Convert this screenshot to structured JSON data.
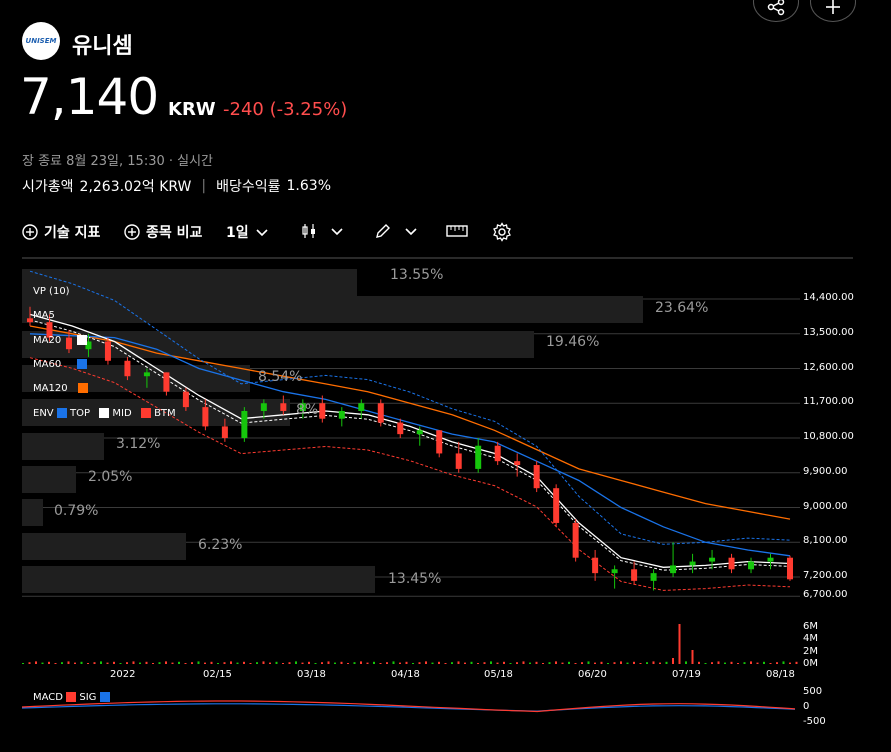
{
  "stock": {
    "logo_text": "UNISEM",
    "name": "유니셈",
    "price": "7,140",
    "currency": "KRW",
    "change": "-240",
    "change_pct": "(-3.25%)",
    "status": "장 종료 8월 23일, 15:30 · 실시간",
    "market_cap_label": "시가총액",
    "market_cap": "2,263.02억 KRW",
    "dividend_label": "배당수익률",
    "dividend": "1.63%"
  },
  "toolbar": {
    "indicators": "기술 지표",
    "compare": "종목 비교",
    "interval": "1일"
  },
  "legend": {
    "vp": "VP (10)",
    "ma5": "MA5",
    "ma20": "MA20",
    "ma60": "MA60",
    "ma120": "MA120",
    "env": "ENV",
    "top": "TOP",
    "mid": "MID",
    "btm": "BTM",
    "macd": "MACD",
    "sig": "SIG"
  },
  "colors": {
    "up": "#16c60c",
    "down": "#ff3b30",
    "ma20": "#ffffff",
    "ma60": "#1a73e8",
    "ma120": "#ff6d00",
    "env": "#1a73e8",
    "change_negative": "#ff4d4d"
  },
  "volume_profile": [
    "13.55%",
    "23.64%",
    "19.46%",
    "8.54%",
    "8%",
    "3.12%",
    "2.05%",
    "0.79%",
    "6.23%",
    "13.45%"
  ],
  "price_axis": [
    "14,400.00",
    "13,500.00",
    "12,600.00",
    "11,700.00",
    "10,800.00",
    "9,900.00",
    "9,000.00",
    "8,100.00",
    "7,200.00",
    "6,700.00"
  ],
  "volume_axis": [
    "6M",
    "4M",
    "2M",
    "0M"
  ],
  "macd_axis": [
    "500",
    "0",
    "-500"
  ],
  "x_axis": [
    "2022",
    "02/15",
    "03/18",
    "04/18",
    "05/18",
    "06/20",
    "07/19",
    "08/18"
  ],
  "chart_data": {
    "type": "candlestick",
    "title": "",
    "xlabel": "",
    "ylabel": "",
    "ylim": [
      6700,
      14800
    ],
    "series": [
      {
        "name": "MA20",
        "values": [
          14000,
          13700,
          13300,
          12600,
          11900,
          11300,
          11400,
          11500,
          11400,
          11100,
          10700,
          10400,
          9800,
          8600,
          7700,
          7450,
          7500,
          7600,
          7550
        ]
      },
      {
        "name": "MA60",
        "values": [
          13500,
          13450,
          13400,
          13100,
          12600,
          12300,
          12000,
          11800,
          11500,
          11200,
          10900,
          10700,
          10200,
          9700,
          9000,
          8500,
          8100,
          7900,
          7750
        ]
      },
      {
        "name": "MA120",
        "values": [
          13700,
          13500,
          13300,
          13000,
          12800,
          12600,
          12400,
          12200,
          12000,
          11700,
          11400,
          11000,
          10500,
          10000,
          9700,
          9400,
          9100,
          8900,
          8700
        ]
      }
    ],
    "candles": [
      [
        13900,
        14200,
        13700,
        13800
      ],
      [
        13800,
        14000,
        13300,
        13400
      ],
      [
        13400,
        13600,
        13000,
        13100
      ],
      [
        13100,
        13500,
        12900,
        13300
      ],
      [
        13300,
        13400,
        12700,
        12800
      ],
      [
        12800,
        12900,
        12300,
        12400
      ],
      [
        12400,
        12600,
        12100,
        12500
      ],
      [
        12500,
        12500,
        11900,
        12000
      ],
      [
        12000,
        12100,
        11500,
        11600
      ],
      [
        11600,
        11800,
        11000,
        11100
      ],
      [
        11100,
        11300,
        10700,
        10800
      ],
      [
        10800,
        11600,
        10700,
        11500
      ],
      [
        11500,
        11800,
        11300,
        11700
      ],
      [
        11700,
        11900,
        11400,
        11500
      ],
      [
        11500,
        11800,
        11300,
        11700
      ],
      [
        11700,
        11900,
        11200,
        11300
      ],
      [
        11300,
        11600,
        11100,
        11500
      ],
      [
        11500,
        11800,
        11300,
        11700
      ],
      [
        11700,
        11800,
        11100,
        11200
      ],
      [
        11200,
        11300,
        10800,
        10900
      ],
      [
        10900,
        11100,
        10600,
        11000
      ],
      [
        11000,
        11000,
        10300,
        10400
      ],
      [
        10400,
        10700,
        9900,
        10000
      ],
      [
        10000,
        10800,
        9900,
        10600
      ],
      [
        10600,
        10700,
        10100,
        10200
      ],
      [
        10200,
        10400,
        9800,
        10100
      ],
      [
        10100,
        10200,
        9400,
        9500
      ],
      [
        9500,
        9600,
        8500,
        8600
      ],
      [
        8600,
        8700,
        7600,
        7700
      ],
      [
        7700,
        7900,
        7100,
        7300
      ],
      [
        7300,
        7500,
        6900,
        7400
      ],
      [
        7400,
        7600,
        7000,
        7100
      ],
      [
        7100,
        7400,
        6850,
        7300
      ],
      [
        7300,
        8100,
        7200,
        7500
      ],
      [
        7500,
        7800,
        7300,
        7600
      ],
      [
        7600,
        7900,
        7400,
        7700
      ],
      [
        7700,
        7800,
        7300,
        7400
      ],
      [
        7400,
        7700,
        7300,
        7600
      ],
      [
        7600,
        7800,
        7400,
        7700
      ],
      [
        7700,
        7750,
        7100,
        7140
      ]
    ]
  }
}
